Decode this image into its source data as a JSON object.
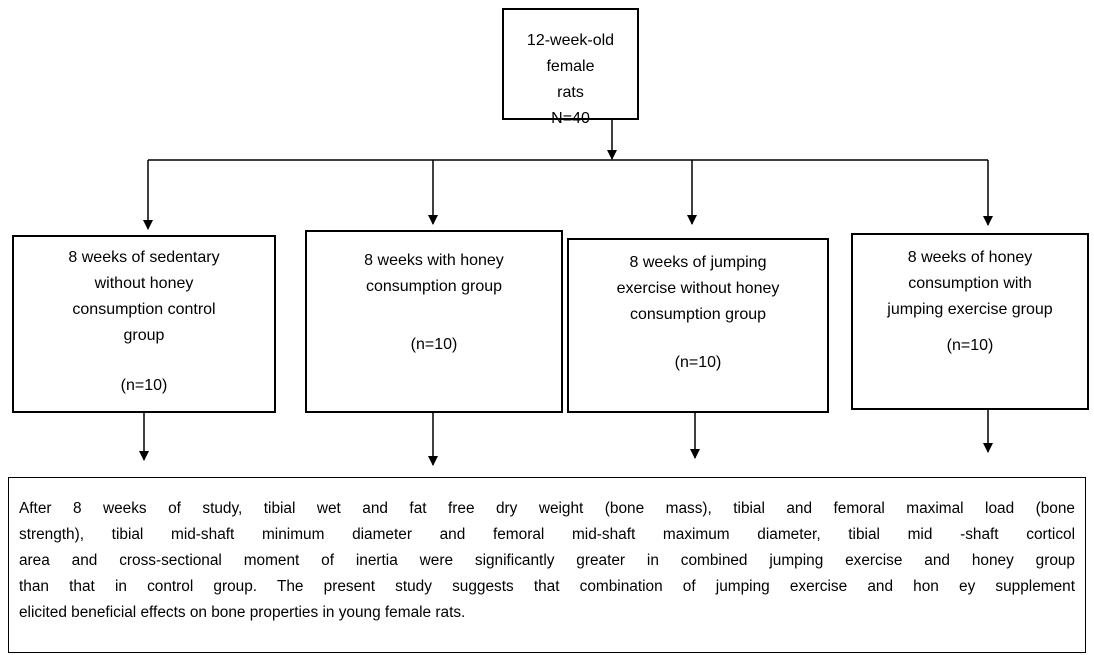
{
  "nodes": [
    {
      "lines": [
        "12-week-old female",
        "rats",
        "N=40"
      ]
    },
    {
      "lines": [
        "8 weeks of sedentary",
        "without honey",
        "consumption control",
        "group"
      ],
      "n": "(n=10)"
    },
    {
      "lines": [
        "8 weeks with honey",
        "consumption group"
      ],
      "n": "(n=10)"
    },
    {
      "lines": [
        "8 weeks of jumping",
        "exercise without honey",
        "consumption group"
      ],
      "n": "(n=10)"
    },
    {
      "lines": [
        "8 weeks of honey",
        "consumption with",
        "jumping exercise group"
      ],
      "n": "(n=10)"
    }
  ],
  "summary": {
    "lines": [
      "After 8 weeks of study, tibial wet and fat free dry weight (bone mass), tibial and femoral maximal load (bone",
      "strength), tibial mid-shaft minimum diameter and femoral mid-shaft maximum diameter, tibial mid -shaft corticol",
      "area and cross-sectional moment of inertia were significantly greater in combined jumping exercise and honey group",
      "than that in control group. The present study suggests that combination of jumping exercise and hon ey supplement",
      "elicited beneficial effects on bone properties in young female rats."
    ]
  }
}
